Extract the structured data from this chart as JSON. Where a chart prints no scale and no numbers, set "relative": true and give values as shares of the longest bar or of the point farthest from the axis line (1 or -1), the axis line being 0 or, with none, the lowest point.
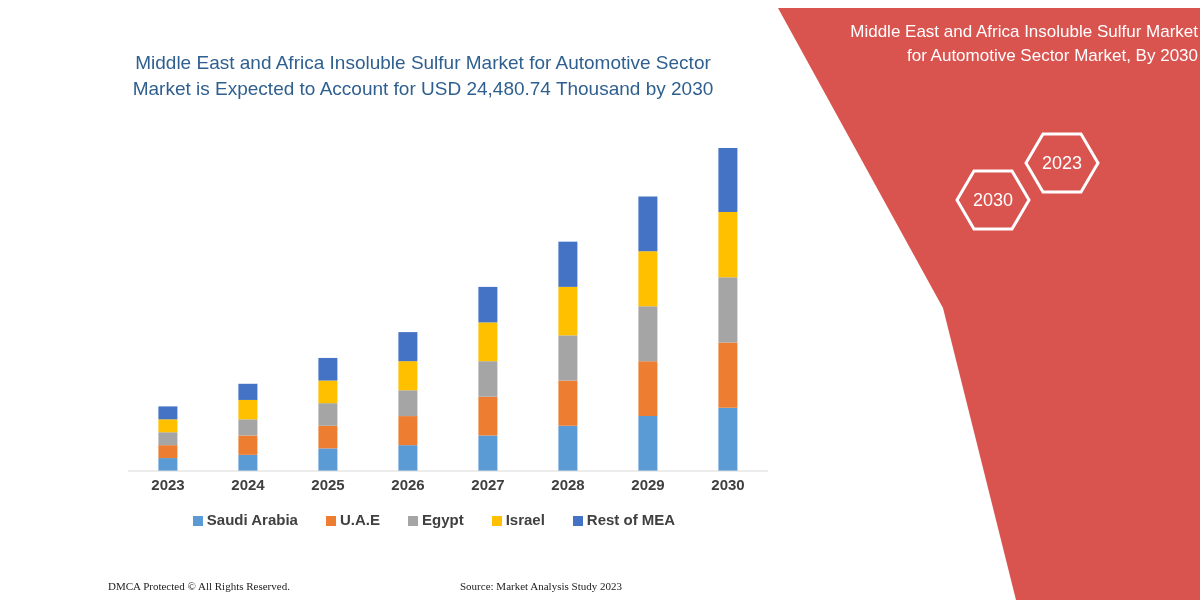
{
  "chart_data": {
    "type": "bar",
    "stacked": true,
    "relative": true,
    "title": "Middle East and Africa Insoluble Sulfur Market for Automotive Sector Market is Expected to Account for USD 24,480.74 Thousand by 2030",
    "categories": [
      "2023",
      "2024",
      "2025",
      "2026",
      "2027",
      "2028",
      "2029",
      "2030"
    ],
    "series": [
      {
        "name": "Saudi Arabia",
        "color": "#5b9bd5",
        "values": [
          0.04,
          0.05,
          0.07,
          0.08,
          0.11,
          0.14,
          0.17,
          0.196
        ]
      },
      {
        "name": "U.A.E",
        "color": "#ed7d31",
        "values": [
          0.04,
          0.06,
          0.07,
          0.09,
          0.12,
          0.14,
          0.17,
          0.202
        ]
      },
      {
        "name": "Egypt",
        "color": "#a5a5a5",
        "values": [
          0.04,
          0.05,
          0.07,
          0.08,
          0.11,
          0.14,
          0.17,
          0.202
        ]
      },
      {
        "name": "Israel",
        "color": "#ffc000",
        "values": [
          0.04,
          0.06,
          0.07,
          0.09,
          0.12,
          0.15,
          0.17,
          0.202
        ]
      },
      {
        "name": "Rest of MEA",
        "color": "#4472c4",
        "values": [
          0.04,
          0.05,
          0.07,
          0.09,
          0.11,
          0.14,
          0.17,
          0.198
        ]
      }
    ],
    "legend": "bottom",
    "annotations": [
      "Middle East and Africa Insoluble Sulfur Market for Automotive Sector Market, By 2030",
      "2023",
      "2030",
      "DMCA Protected © All Rights Reserved.",
      "Source: Market Analysis Study 2023"
    ]
  }
}
